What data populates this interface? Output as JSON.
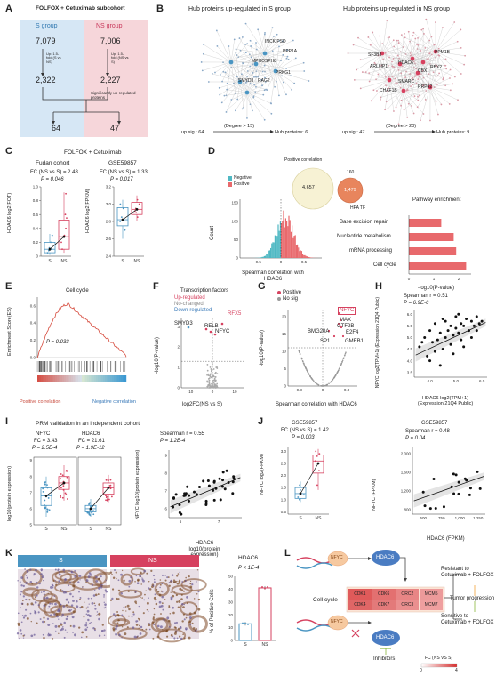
{
  "panels": {
    "A": {
      "letter": "A",
      "title": "FOLFOX + Cetuximab subcohort",
      "s_group": "S group",
      "ns_group": "NS group",
      "s_total": "7,079",
      "ns_total": "7,006",
      "s_up": "2,322",
      "ns_up": "2,227",
      "s_rule": "Up: 1.5-fold (S vs NS)",
      "ns_rule": "Up: 1.5-fold (NS vs S)",
      "sig_text": "Significantly up-regulated proteins",
      "s_final": "64",
      "ns_final": "47"
    },
    "B": {
      "letter": "B",
      "title_s": "Hub proteins up-regulated in S group",
      "title_ns": "Hub proteins up-regulated in NS group",
      "s_labels": [
        "INCKIPSD",
        "PPP1A",
        "MPHOSPH8",
        "PRKG1",
        "SMYD3",
        "RAG2"
      ],
      "ns_labels": [
        "SF3B3",
        "PPM1B",
        "HDAC6",
        "ARL6IP1",
        "CBX",
        "SMARC",
        "CHAF1B",
        "RBX2",
        "RRP42"
      ],
      "s_footer": "up sig : 64",
      "s_degree": "(Degree > 15)",
      "s_hub": "Hub proteins: 6",
      "ns_footer": "up sig : 47",
      "ns_degree": "(Degree > 20)",
      "ns_hub": "Hub proteins: 9"
    },
    "C": {
      "letter": "C",
      "title": "FOLFOX + Cetuximab",
      "cohort1": "Fudan cohort",
      "fc1": "FC (NS vs S) = 2.48",
      "p1": "P = 0.046",
      "cohort2": "GSE59857",
      "fc2": "FC (NS vs S) = 1.33",
      "p2": "P = 0.017",
      "ylab1": "HDAC6 log2(FOT)",
      "ylab2": "HDAC6 log2(FPKM)",
      "yticks1": [
        "1.0",
        "0.8",
        "0.6",
        "0.4",
        "0.2",
        "0"
      ],
      "yticks2": [
        "3.2",
        "3.0",
        "2.8",
        "2.6",
        "2.4"
      ],
      "xcats": [
        "S",
        "NS"
      ]
    },
    "D": {
      "letter": "D",
      "pos_corr": "Positive correlation",
      "venn_left": "4,657",
      "venn_right": "1,479",
      "venn_overlap": "160",
      "venn_label": "HPA TF",
      "legend_neg": "Negative",
      "legend_pos": "Positive",
      "ylabel": "Count",
      "xlabel": "Spearman correlation with HDAC6",
      "yticks": [
        "150",
        "100",
        "50",
        "0"
      ],
      "xticks": [
        "-0.5",
        "0",
        "0.5"
      ],
      "pathway_title": "Pathway enrichment",
      "pathways": [
        "Base excision repair",
        "Nucleotide metabolism",
        "mRNA processing",
        "Cell cycle"
      ],
      "path_xlabel": "-log10(P-value)",
      "path_xticks": [
        "0",
        "1",
        "2"
      ]
    },
    "E": {
      "letter": "E",
      "title": "Cell cycle",
      "ylabel": "Enrichment Score(ES)",
      "pval": "P = 0.033",
      "pos_label": "Positive correlation",
      "neg_label": "Negative correlation",
      "yticks": [
        "0.6",
        "0.4",
        "0.2",
        "0.0"
      ]
    },
    "F": {
      "letter": "F",
      "title": "Transcription factors",
      "legend": [
        "Up-regulated",
        "No-changed",
        "Down-regulated"
      ],
      "labels": [
        "RFX5",
        "SMYD3",
        "RELB",
        "NFYC"
      ],
      "ylabel": "-log10(P-value)",
      "xlabel": "log2FC(NS vs S)",
      "xticks": [
        "-10",
        "0",
        "10"
      ],
      "yticks": [
        "3",
        "2",
        "1",
        "0"
      ]
    },
    "G": {
      "letter": "G",
      "legend": [
        "Positive",
        "No sig"
      ],
      "labels": [
        "NFYC",
        "MAX",
        "GTF2B",
        "E2F4",
        "BMG20A",
        "SP1",
        "GMEB1"
      ],
      "ylabel": "-log10(P-value)",
      "xlabel": "Spearman correlation with HDAC6",
      "xticks": [
        "-0.3",
        "0",
        "0.3"
      ],
      "yticks": [
        "20",
        "15",
        "10",
        "5",
        "0"
      ]
    },
    "H": {
      "letter": "H",
      "stat_r": "Spearman r = 0.51",
      "stat_p": "P = 6.9E-6",
      "ylabel": "NFYC log2(TPM+1) (Expression 21Q4 Public)",
      "xlabel": "HDAC6 log2(TPM+1) (Expression 21Q4 Public)",
      "xticks": [
        "4.0",
        "5.0",
        "6.0"
      ],
      "yticks": [
        "6.0",
        "5.5",
        "5.0",
        "4.5",
        "4.0",
        "3.5"
      ]
    },
    "I": {
      "letter": "I",
      "title": "PRM validation in an independent cohort",
      "g1": "NFYC",
      "g1_fc": "FC = 3.43",
      "g1_p": "P = 2.5E-4",
      "g2": "HDAC6",
      "g2_fc": "FC = 21.61",
      "g2_p": "P = 1.9E-12",
      "ylabel": "log10(protein expression)",
      "yticks": [
        "9",
        "8",
        "7",
        "6",
        "5"
      ],
      "xcats": [
        "S",
        "NS"
      ],
      "sc_r": "Spearman r = 0.55",
      "sc_p": "P = 1.2E-4",
      "sc_ylabel": "NFYC log10(protein expression)",
      "sc_xlabel": "HDAC6 log10(protein expression)",
      "sc_xticks": [
        "6",
        "7"
      ],
      "sc_yticks": [
        "9",
        "8",
        "7",
        "6"
      ]
    },
    "J": {
      "letter": "J",
      "cohort": "GSE59857",
      "fc": "FC (NS vs S) = 1.42",
      "p": "P = 0.003",
      "ylabel": "NFYC log2(FPKM)",
      "yticks": [
        "3.0",
        "2.5",
        "2.0",
        "1.5",
        "1.0",
        "0.5"
      ],
      "xcats": [
        "S",
        "NS"
      ],
      "sc_cohort": "GSE59857",
      "sc_r": "Spearman r = 0.48",
      "sc_p": "P = 0.04",
      "sc_ylabel": "NFYC (FPKM)",
      "sc_xlabel": "HDAC6 (FPKM)",
      "sc_xticks": [
        "500",
        "750",
        "1,000",
        "1,250"
      ],
      "sc_yticks": [
        "2,000",
        "1,600",
        "1,200",
        "800"
      ]
    },
    "K": {
      "letter": "K",
      "s_label": "S",
      "ns_label": "NS",
      "chart_title": "HDAC6",
      "pval": "P < 1E-4",
      "ylabel": "% of Positive Cells",
      "yticks": [
        "50",
        "40",
        "30",
        "20",
        "10",
        "0"
      ],
      "xcats": [
        "S",
        "NS"
      ]
    },
    "L": {
      "letter": "L",
      "hdac6": "HDAC6",
      "nfyc": "NFYC",
      "cell_cycle": "Cell cycle",
      "genes_row1": [
        "CDK1",
        "CDK6",
        "ORC2",
        "MCM5"
      ],
      "genes_row2": [
        "CDK4",
        "CDK7",
        "ORC3",
        "MCM7"
      ],
      "resistant": "Resistant to Cetuximab + FOLFOX",
      "progression": "Tumor progression",
      "sensitive": "Sensitive to Cetuximab + FOLFOX",
      "inhibitors": "Inhibitors",
      "legend_title": "FC (NS VS S)",
      "legend_min": "0",
      "legend_max": "4"
    }
  },
  "chart_data": [
    {
      "type": "bar",
      "title": "Pathway enrichment",
      "categories": [
        "Base excision repair",
        "Nucleotide metabolism",
        "mRNA processing",
        "Cell cycle"
      ],
      "values": [
        1.3,
        1.8,
        1.9,
        2.3
      ],
      "xlabel": "-log10(P-value)",
      "xlim": [
        0,
        2.5
      ],
      "color": "#e8696c"
    },
    {
      "type": "bar",
      "title": "HDAC6",
      "categories": [
        "S",
        "NS"
      ],
      "values": [
        13,
        41
      ],
      "ylabel": "% of Positive Cells",
      "ylim": [
        0,
        50
      ],
      "colors": [
        "#4a95c2",
        "#d6415f"
      ]
    },
    {
      "type": "scatter",
      "title": "",
      "xlabel": "HDAC6 log2(TPM+1)",
      "ylabel": "NFYC log2(TPM+1)",
      "xlim": [
        3.4,
        6.2
      ],
      "ylim": [
        3.3,
        6.2
      ],
      "x": [
        3.6,
        3.8,
        3.9,
        4.0,
        4.1,
        4.2,
        4.2,
        4.3,
        4.4,
        4.5,
        4.5,
        4.6,
        4.7,
        4.8,
        4.8,
        4.9,
        5.0,
        5.0,
        5.1,
        5.2,
        5.2,
        5.3,
        5.4,
        5.5,
        5.6,
        5.7,
        5.8,
        5.9,
        6.0,
        4.0,
        4.4,
        4.9,
        5.3,
        5.6,
        4.6,
        5.1,
        3.7,
        5.8
      ],
      "y": [
        4.6,
        5.0,
        4.2,
        5.3,
        4.8,
        4.4,
        5.6,
        4.9,
        5.2,
        4.5,
        5.8,
        5.0,
        5.3,
        4.7,
        5.5,
        5.1,
        5.4,
        5.9,
        5.2,
        5.6,
        4.9,
        5.5,
        5.8,
        5.3,
        5.7,
        5.5,
        5.9,
        5.6,
        5.7,
        4.0,
        3.8,
        4.3,
        4.6,
        5.0,
        5.7,
        6.0,
        4.8,
        5.3
      ]
    }
  ],
  "colors": {
    "s_blue": "#4a95c2",
    "ns_red": "#d6415f",
    "s_bg": "#d6e7f5",
    "ns_bg": "#f6d6da",
    "teal": "#4fb8c3",
    "salmon": "#e8696c",
    "orange": "#f2a33a"
  }
}
